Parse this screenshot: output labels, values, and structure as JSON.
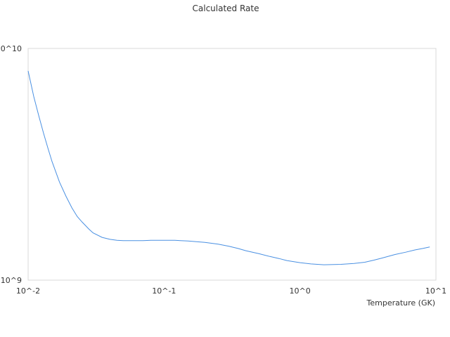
{
  "chart_data": {
    "type": "line",
    "title": "Calculated Rate",
    "xlabel": "Temperature (GK)",
    "ylabel": "",
    "x_scale": "log",
    "y_scale": "log",
    "xlim": [
      0.01,
      10
    ],
    "ylim": [
      1000000000,
      10000000000
    ],
    "x_ticks": [
      {
        "value": 0.01,
        "label": "10^-2"
      },
      {
        "value": 0.1,
        "label": "10^-1"
      },
      {
        "value": 1,
        "label": "10^0"
      },
      {
        "value": 10,
        "label": "10^1"
      }
    ],
    "y_ticks": [
      {
        "value": 1000000000,
        "label": "10^9"
      },
      {
        "value": 10000000000,
        "label": "0^10"
      }
    ],
    "grid": false,
    "series": [
      {
        "color": "#4a90e2",
        "x": [
          0.01,
          0.011,
          0.012,
          0.013,
          0.014,
          0.015,
          0.017,
          0.019,
          0.021,
          0.023,
          0.025,
          0.028,
          0.03,
          0.035,
          0.04,
          0.045,
          0.05,
          0.06,
          0.07,
          0.08,
          0.1,
          0.12,
          0.15,
          0.2,
          0.25,
          0.3,
          0.35,
          0.4,
          0.5,
          0.6,
          0.7,
          0.8,
          1.0,
          1.2,
          1.5,
          2.0,
          2.5,
          3.0,
          3.5,
          4.0,
          5.0,
          6.0,
          7.0,
          8.0,
          9.0
        ],
        "y": [
          8000000000,
          6200000000,
          5100000000,
          4300000000,
          3700000000,
          3250000000,
          2650000000,
          2300000000,
          2050000000,
          1880000000,
          1780000000,
          1660000000,
          1600000000,
          1530000000,
          1500000000,
          1485000000,
          1480000000,
          1480000000,
          1480000000,
          1485000000,
          1485000000,
          1485000000,
          1475000000,
          1455000000,
          1430000000,
          1400000000,
          1370000000,
          1340000000,
          1300000000,
          1265000000,
          1240000000,
          1215000000,
          1190000000,
          1175000000,
          1165000000,
          1170000000,
          1180000000,
          1195000000,
          1220000000,
          1245000000,
          1290000000,
          1320000000,
          1350000000,
          1370000000,
          1390000000
        ]
      }
    ]
  }
}
